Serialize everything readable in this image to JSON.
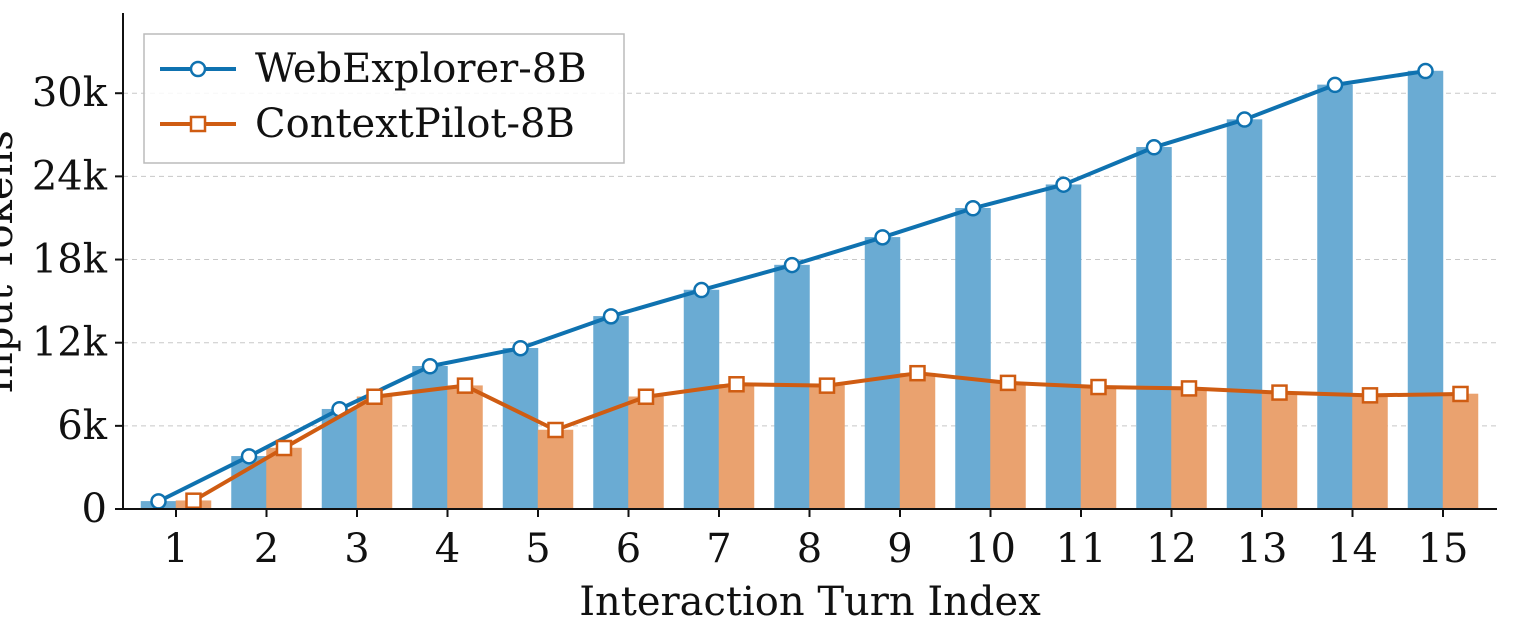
{
  "chart_data": {
    "type": "bar+line",
    "title": "",
    "xlabel": "Interaction Turn Index",
    "ylabel": "Input Tokens",
    "categories": [
      "1",
      "2",
      "3",
      "4",
      "5",
      "6",
      "7",
      "8",
      "9",
      "10",
      "11",
      "12",
      "13",
      "14",
      "15"
    ],
    "ylim": [
      0,
      35500
    ],
    "yticks": [
      0,
      6000,
      12000,
      18000,
      24000,
      30000
    ],
    "ytick_labels": [
      "0",
      "6k",
      "12k",
      "18k",
      "24k",
      "30k"
    ],
    "grid": "horizontal dashed",
    "legend_position": "top-left",
    "series": [
      {
        "name": "WebExplorer-8B",
        "color": "#0f72b0",
        "bar_color": "#6aabd3",
        "marker": "circle",
        "values": [
          550,
          3800,
          7200,
          10300,
          11600,
          13900,
          15800,
          17600,
          19600,
          21700,
          23400,
          26100,
          28100,
          30600,
          31600
        ]
      },
      {
        "name": "ContextPilot-8B",
        "color": "#cf5c12",
        "bar_color": "#eaa26f",
        "marker": "square",
        "values": [
          600,
          4400,
          8100,
          8900,
          5700,
          8100,
          9000,
          8900,
          9800,
          9100,
          8800,
          8700,
          8400,
          8200,
          8300
        ]
      }
    ]
  }
}
